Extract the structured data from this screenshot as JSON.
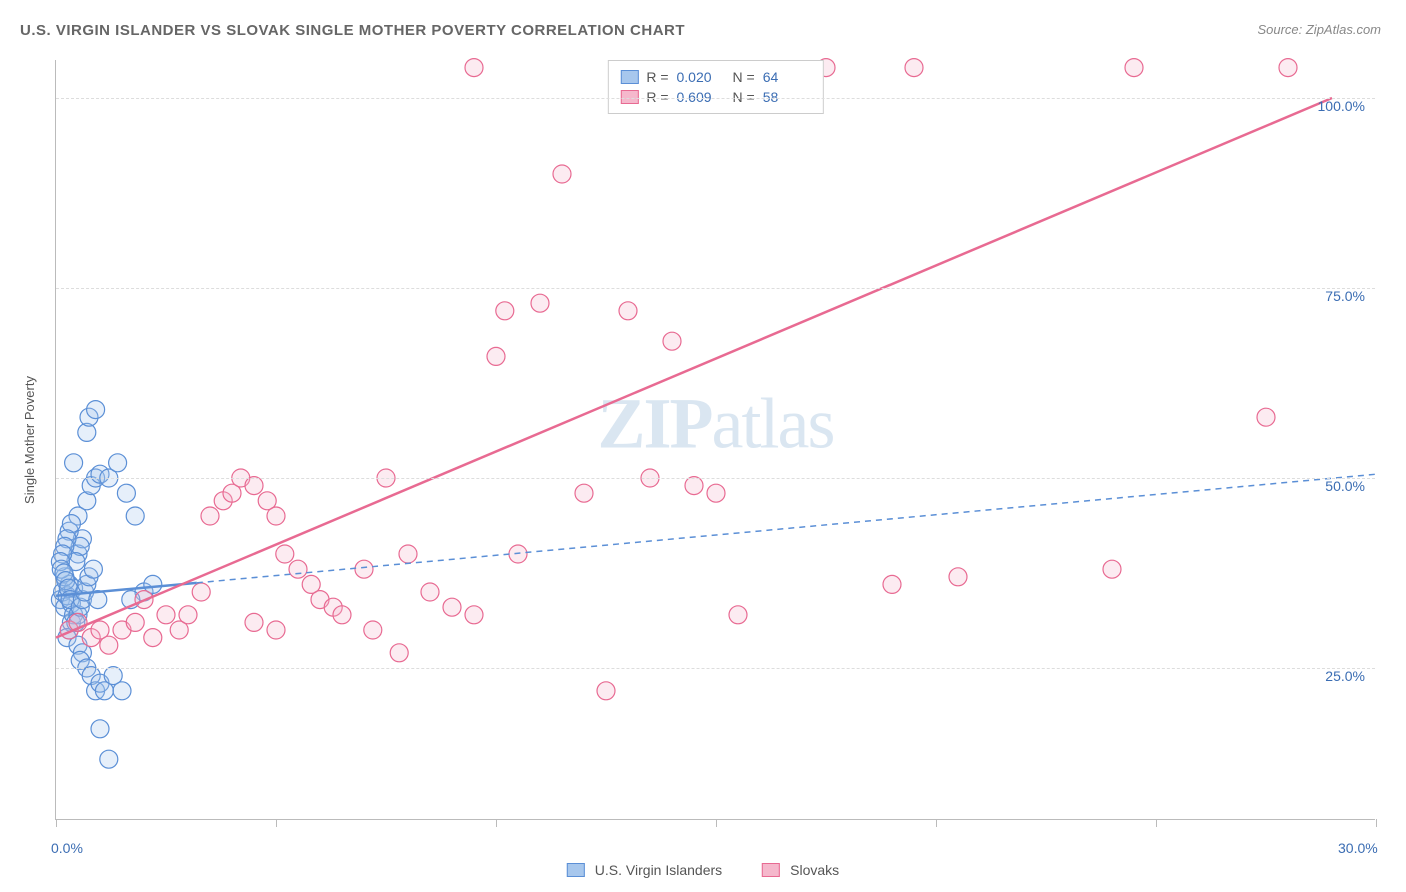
{
  "title": "U.S. VIRGIN ISLANDER VS SLOVAK SINGLE MOTHER POVERTY CORRELATION CHART",
  "source": "Source: ZipAtlas.com",
  "watermark_a": "ZIP",
  "watermark_b": "atlas",
  "y_axis_title": "Single Mother Poverty",
  "chart": {
    "type": "scatter",
    "xlim": [
      0,
      30
    ],
    "ylim": [
      5,
      105
    ],
    "x_ticks": [
      0,
      5,
      10,
      15,
      20,
      25,
      30
    ],
    "y_ticks": [
      25,
      50,
      75,
      100
    ],
    "x_tick_labels": {
      "0": "0.0%",
      "30": "30.0%"
    },
    "y_tick_labels": {
      "25": "25.0%",
      "50": "50.0%",
      "75": "75.0%",
      "100": "100.0%"
    },
    "grid_color": "#dddddd",
    "axis_color": "#bbbbbb",
    "background_color": "#ffffff",
    "marker_radius": 9,
    "marker_stroke_width": 1.2,
    "marker_fill_opacity": 0.28,
    "trend_line_width": 2.5,
    "series": [
      {
        "name": "U.S. Virgin Islanders",
        "color_stroke": "#5b8fd6",
        "color_fill": "#a7c7ed",
        "R": "0.020",
        "N": "64",
        "trend": {
          "x1": 0,
          "y1": 34.5,
          "x2": 30,
          "y2": 50.5,
          "dash": "6,5",
          "solid_until_x": 3.2
        },
        "points": [
          [
            0.1,
            34
          ],
          [
            0.2,
            33
          ],
          [
            0.15,
            35
          ],
          [
            0.3,
            36
          ],
          [
            0.25,
            34.5
          ],
          [
            0.35,
            33.5
          ],
          [
            0.4,
            35.5
          ],
          [
            0.2,
            37
          ],
          [
            0.5,
            40
          ],
          [
            0.6,
            42
          ],
          [
            0.55,
            41
          ],
          [
            0.45,
            39
          ],
          [
            0.5,
            45
          ],
          [
            0.7,
            47
          ],
          [
            0.8,
            49
          ],
          [
            0.9,
            50
          ],
          [
            1.0,
            50.5
          ],
          [
            1.2,
            50
          ],
          [
            1.4,
            52
          ],
          [
            0.3,
            30
          ],
          [
            0.35,
            31
          ],
          [
            0.4,
            32
          ],
          [
            0.25,
            29
          ],
          [
            0.5,
            28
          ],
          [
            0.6,
            27
          ],
          [
            0.55,
            26
          ],
          [
            0.7,
            25
          ],
          [
            0.8,
            24
          ],
          [
            0.9,
            22
          ],
          [
            1.0,
            23
          ],
          [
            1.1,
            22
          ],
          [
            1.3,
            24
          ],
          [
            1.5,
            22
          ],
          [
            0.3,
            43
          ],
          [
            0.35,
            44
          ],
          [
            0.25,
            42
          ],
          [
            0.2,
            41
          ],
          [
            0.15,
            40
          ],
          [
            0.1,
            39
          ],
          [
            0.12,
            38
          ],
          [
            0.18,
            37.5
          ],
          [
            0.22,
            36.5
          ],
          [
            0.28,
            35.5
          ],
          [
            0.32,
            34
          ],
          [
            0.7,
            56
          ],
          [
            0.75,
            58
          ],
          [
            0.9,
            59
          ],
          [
            1.0,
            17
          ],
          [
            1.2,
            13
          ],
          [
            1.8,
            45
          ],
          [
            1.6,
            48
          ],
          [
            0.4,
            52
          ],
          [
            0.5,
            32
          ],
          [
            0.45,
            31
          ],
          [
            0.55,
            33
          ],
          [
            0.6,
            34
          ],
          [
            0.65,
            35
          ],
          [
            0.7,
            36
          ],
          [
            0.75,
            37
          ],
          [
            0.85,
            38
          ],
          [
            0.95,
            34
          ],
          [
            2.0,
            35
          ],
          [
            2.2,
            36
          ],
          [
            1.7,
            34
          ]
        ]
      },
      {
        "name": "Slovaks",
        "color_stroke": "#e86a92",
        "color_fill": "#f5b8cc",
        "R": "0.609",
        "N": "58",
        "trend": {
          "x1": 0,
          "y1": 29,
          "x2": 29,
          "y2": 100,
          "dash": null
        },
        "points": [
          [
            0.3,
            30
          ],
          [
            0.5,
            31
          ],
          [
            0.8,
            29
          ],
          [
            1.0,
            30
          ],
          [
            1.2,
            28
          ],
          [
            1.5,
            30
          ],
          [
            1.8,
            31
          ],
          [
            2.0,
            34
          ],
          [
            2.2,
            29
          ],
          [
            2.5,
            32
          ],
          [
            2.8,
            30
          ],
          [
            3.0,
            32
          ],
          [
            3.3,
            35
          ],
          [
            3.5,
            45
          ],
          [
            3.8,
            47
          ],
          [
            4.0,
            48
          ],
          [
            4.2,
            50
          ],
          [
            4.5,
            49
          ],
          [
            4.8,
            47
          ],
          [
            5.0,
            45
          ],
          [
            5.2,
            40
          ],
          [
            5.5,
            38
          ],
          [
            5.8,
            36
          ],
          [
            6.0,
            34
          ],
          [
            6.3,
            33
          ],
          [
            6.5,
            32
          ],
          [
            7.0,
            38
          ],
          [
            7.5,
            50
          ],
          [
            8.0,
            40
          ],
          [
            8.5,
            35
          ],
          [
            9.0,
            33
          ],
          [
            9.5,
            32
          ],
          [
            7.2,
            30
          ],
          [
            7.8,
            27
          ],
          [
            9.5,
            104
          ],
          [
            10.0,
            66
          ],
          [
            10.2,
            72
          ],
          [
            10.5,
            40
          ],
          [
            11.0,
            73
          ],
          [
            11.5,
            90
          ],
          [
            12.0,
            48
          ],
          [
            12.5,
            22
          ],
          [
            13.0,
            72
          ],
          [
            13.5,
            50
          ],
          [
            14.0,
            68
          ],
          [
            14.5,
            49
          ],
          [
            15.0,
            48
          ],
          [
            15.5,
            32
          ],
          [
            17.5,
            104
          ],
          [
            19.0,
            36
          ],
          [
            19.5,
            104
          ],
          [
            20.5,
            37
          ],
          [
            24.0,
            38
          ],
          [
            24.5,
            104
          ],
          [
            27.5,
            58
          ],
          [
            28.0,
            104
          ],
          [
            4.5,
            31
          ],
          [
            5.0,
            30
          ]
        ]
      }
    ]
  },
  "stats_box": {
    "rows": [
      {
        "swatch_fill": "#a7c7ed",
        "swatch_stroke": "#5b8fd6",
        "r_label": "R =",
        "r_val": "0.020",
        "n_label": "N =",
        "n_val": "64"
      },
      {
        "swatch_fill": "#f5b8cc",
        "swatch_stroke": "#e86a92",
        "r_label": "R =",
        "r_val": "0.609",
        "n_label": "N =",
        "n_val": "58"
      }
    ]
  },
  "bottom_legend": [
    {
      "swatch_fill": "#a7c7ed",
      "swatch_stroke": "#5b8fd6",
      "label": "U.S. Virgin Islanders"
    },
    {
      "swatch_fill": "#f5b8cc",
      "swatch_stroke": "#e86a92",
      "label": "Slovaks"
    }
  ]
}
